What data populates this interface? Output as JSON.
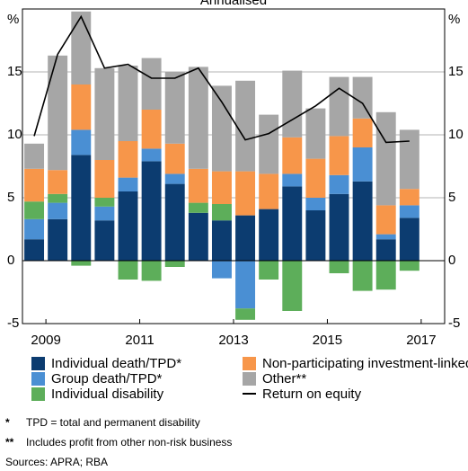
{
  "chart_data": {
    "type": "bar",
    "subtitle": "Annualised",
    "ylabel": "%",
    "y2label": "%",
    "categories": [
      "2009",
      null,
      null,
      null,
      "2011",
      null,
      null,
      null,
      "2013",
      null,
      null,
      null,
      "2015",
      null,
      null,
      null,
      "2017"
    ],
    "series": [
      {
        "name": "Individual death/TPD*",
        "color": "#0c3c70",
        "values": [
          1.7,
          3.3,
          8.4,
          3.2,
          5.5,
          7.9,
          6.1,
          3.8,
          3.2,
          3.6,
          4.1,
          5.9,
          4.0,
          5.3,
          6.3,
          1.7,
          3.4
        ]
      },
      {
        "name": "Group death/TPD*",
        "color": "#4a8fd3",
        "values": [
          1.6,
          1.3,
          2.0,
          1.1,
          1.1,
          1.0,
          0.8,
          0,
          -1.4,
          -3.8,
          0,
          1.0,
          1.0,
          1.5,
          2.7,
          0.4,
          1.0
        ]
      },
      {
        "name": "Individual disability",
        "color": "#5dae5a",
        "values": [
          1.4,
          0.7,
          -0.4,
          0.7,
          -1.5,
          -1.6,
          -0.5,
          0.8,
          1.3,
          -0.9,
          -1.5,
          -4.0,
          0,
          -1.0,
          -2.4,
          -2.3,
          -0.8
        ]
      },
      {
        "name": "Non-participating investment-linked",
        "color": "#f7964a",
        "values": [
          2.6,
          1.9,
          3.6,
          3.0,
          2.9,
          3.1,
          2.4,
          2.7,
          2.6,
          3.5,
          2.8,
          2.9,
          3.1,
          3.1,
          2.3,
          2.3,
          1.3
        ]
      },
      {
        "name": "Other**",
        "color": "#a6a6a6",
        "values": [
          2.0,
          9.1,
          5.8,
          7.3,
          6.0,
          4.1,
          5.7,
          8.1,
          6.8,
          7.2,
          4.7,
          5.3,
          4.0,
          4.7,
          3.3,
          7.4,
          4.7
        ]
      }
    ],
    "line": {
      "name": "Return on equity",
      "color": "#000000",
      "values": [
        9.9,
        16.4,
        19.4,
        15.3,
        15.6,
        14.5,
        14.5,
        15.3,
        12.6,
        9.6,
        10.1,
        11.2,
        12.3,
        13.7,
        12.5,
        9.4,
        9.5
      ]
    },
    "ylim": [
      -5,
      20
    ],
    "yticks": [
      -5,
      0,
      5,
      10,
      15
    ],
    "y2lim": [
      -5,
      20
    ],
    "y2ticks": [
      -5,
      0,
      5,
      10,
      15
    ],
    "grid": true
  },
  "notes": [
    {
      "mark": "*",
      "text": "TPD = total and permanent disability"
    },
    {
      "mark": "**",
      "text": "Includes profit from other non-risk business"
    }
  ],
  "sources": "Sources: APRA; RBA"
}
